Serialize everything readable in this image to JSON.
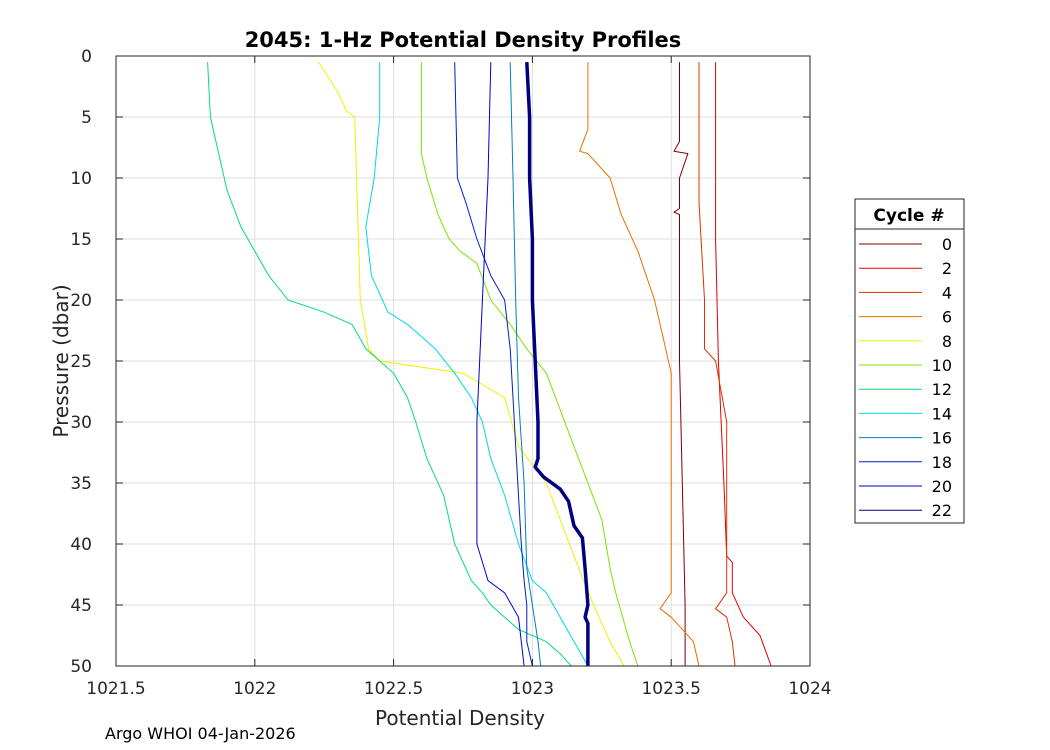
{
  "chart_data": {
    "type": "line",
    "title": "2045: 1-Hz Potential Density Profiles",
    "xlabel": "Potential Density",
    "ylabel": "Pressure (dbar)",
    "xlim": [
      1021.5,
      1024
    ],
    "ylim": [
      0,
      50
    ],
    "y_reversed": true,
    "grid": true,
    "x_ticks": [
      1021.5,
      1022,
      1022.5,
      1023,
      1023.5,
      1024
    ],
    "x_tick_labels": [
      "1021.5",
      "1022",
      "1022.5",
      "1023",
      "1023.5",
      "1024"
    ],
    "y_ticks": [
      0,
      5,
      10,
      15,
      20,
      25,
      30,
      35,
      40,
      45,
      50
    ],
    "y_tick_labels": [
      "0",
      "5",
      "10",
      "15",
      "20",
      "25",
      "30",
      "35",
      "40",
      "45",
      "50"
    ],
    "legend": {
      "title": "Cycle #",
      "position": "outside-right",
      "entries": [
        {
          "label": "0",
          "color": "#800000"
        },
        {
          "label": "2",
          "color": "#e00000"
        },
        {
          "label": "4",
          "color": "#e03000"
        },
        {
          "label": "6",
          "color": "#e87000"
        },
        {
          "label": "8",
          "color": "#f0f000"
        },
        {
          "label": "10",
          "color": "#80e000"
        },
        {
          "label": "12",
          "color": "#00e070"
        },
        {
          "label": "14",
          "color": "#00d8e8"
        },
        {
          "label": "16",
          "color": "#0080c0"
        },
        {
          "label": "18",
          "color": "#0020c0"
        },
        {
          "label": "20",
          "color": "#0000d0"
        },
        {
          "label": "22",
          "color": "#000080"
        }
      ]
    },
    "series": [
      {
        "name": "0",
        "color": "#800000",
        "points": [
          [
            1023.53,
            0.5
          ],
          [
            1023.53,
            7
          ],
          [
            1023.51,
            7.8
          ],
          [
            1023.56,
            8
          ],
          [
            1023.53,
            10
          ],
          [
            1023.53,
            12.5
          ],
          [
            1023.51,
            12.8
          ],
          [
            1023.53,
            13
          ],
          [
            1023.53,
            25
          ],
          [
            1023.54,
            35
          ],
          [
            1023.55,
            45
          ],
          [
            1023.55,
            50
          ]
        ]
      },
      {
        "name": "2",
        "color": "#e00000",
        "points": [
          [
            1023.66,
            0.5
          ],
          [
            1023.66,
            15
          ],
          [
            1023.67,
            25
          ],
          [
            1023.69,
            35
          ],
          [
            1023.7,
            41
          ],
          [
            1023.72,
            41.5
          ],
          [
            1023.72,
            44
          ],
          [
            1023.76,
            46
          ],
          [
            1023.82,
            47.5
          ],
          [
            1023.86,
            50
          ]
        ]
      },
      {
        "name": "4",
        "color": "#e03000",
        "points": [
          [
            1023.6,
            0.5
          ],
          [
            1023.6,
            12
          ],
          [
            1023.62,
            20
          ],
          [
            1023.62,
            24
          ],
          [
            1023.66,
            25
          ],
          [
            1023.7,
            30
          ],
          [
            1023.7,
            44
          ],
          [
            1023.66,
            45.3
          ],
          [
            1023.7,
            46
          ],
          [
            1023.72,
            48
          ],
          [
            1023.73,
            50
          ]
        ]
      },
      {
        "name": "6",
        "color": "#e87000",
        "points": [
          [
            1023.2,
            0.5
          ],
          [
            1023.2,
            6
          ],
          [
            1023.17,
            7.8
          ],
          [
            1023.2,
            8
          ],
          [
            1023.28,
            10
          ],
          [
            1023.32,
            13
          ],
          [
            1023.38,
            16
          ],
          [
            1023.44,
            20
          ],
          [
            1023.47,
            23
          ],
          [
            1023.5,
            26
          ],
          [
            1023.5,
            44
          ],
          [
            1023.46,
            45.3
          ],
          [
            1023.5,
            46
          ],
          [
            1023.58,
            48
          ],
          [
            1023.6,
            50
          ]
        ]
      },
      {
        "name": "8",
        "color": "#f0f000",
        "points": [
          [
            1022.23,
            0.5
          ],
          [
            1022.3,
            3
          ],
          [
            1022.33,
            4.5
          ],
          [
            1022.36,
            5
          ],
          [
            1022.38,
            20
          ],
          [
            1022.41,
            24
          ],
          [
            1022.45,
            25
          ],
          [
            1022.75,
            26
          ],
          [
            1022.9,
            28
          ],
          [
            1022.95,
            32
          ],
          [
            1023.05,
            35
          ],
          [
            1023.1,
            38
          ],
          [
            1023.15,
            41
          ],
          [
            1023.22,
            45
          ],
          [
            1023.28,
            48
          ],
          [
            1023.33,
            50
          ]
        ]
      },
      {
        "name": "10",
        "color": "#80e000",
        "points": [
          [
            1022.6,
            0.5
          ],
          [
            1022.6,
            8
          ],
          [
            1022.62,
            10
          ],
          [
            1022.66,
            13
          ],
          [
            1022.7,
            15
          ],
          [
            1022.74,
            16
          ],
          [
            1022.8,
            17
          ],
          [
            1022.85,
            20
          ],
          [
            1022.92,
            22
          ],
          [
            1022.98,
            24
          ],
          [
            1023.05,
            26
          ],
          [
            1023.1,
            29
          ],
          [
            1023.15,
            32
          ],
          [
            1023.2,
            35
          ],
          [
            1023.25,
            38
          ],
          [
            1023.28,
            42
          ],
          [
            1023.3,
            44
          ],
          [
            1023.35,
            48
          ],
          [
            1023.38,
            50
          ]
        ]
      },
      {
        "name": "12",
        "color": "#00e070",
        "points": [
          [
            1021.83,
            0.5
          ],
          [
            1021.84,
            5
          ],
          [
            1021.86,
            7
          ],
          [
            1021.88,
            9
          ],
          [
            1021.9,
            11
          ],
          [
            1021.95,
            14
          ],
          [
            1022.0,
            16
          ],
          [
            1022.05,
            18
          ],
          [
            1022.12,
            20
          ],
          [
            1022.25,
            21
          ],
          [
            1022.35,
            22
          ],
          [
            1022.4,
            24
          ],
          [
            1022.5,
            26
          ],
          [
            1022.55,
            28
          ],
          [
            1022.58,
            30
          ],
          [
            1022.62,
            33
          ],
          [
            1022.68,
            36
          ],
          [
            1022.72,
            40
          ],
          [
            1022.78,
            43
          ],
          [
            1022.82,
            44
          ],
          [
            1022.85,
            45
          ],
          [
            1022.9,
            46
          ],
          [
            1022.95,
            47
          ],
          [
            1023.05,
            48
          ],
          [
            1023.1,
            49
          ],
          [
            1023.14,
            50
          ]
        ]
      },
      {
        "name": "14",
        "color": "#00d8e8",
        "points": [
          [
            1022.45,
            0.5
          ],
          [
            1022.45,
            5
          ],
          [
            1022.43,
            10
          ],
          [
            1022.4,
            14
          ],
          [
            1022.42,
            18
          ],
          [
            1022.48,
            21
          ],
          [
            1022.55,
            22
          ],
          [
            1022.65,
            24
          ],
          [
            1022.72,
            26
          ],
          [
            1022.78,
            28
          ],
          [
            1022.82,
            30
          ],
          [
            1022.85,
            33
          ],
          [
            1022.9,
            36
          ],
          [
            1022.95,
            40
          ],
          [
            1023.0,
            43
          ],
          [
            1023.05,
            44
          ],
          [
            1023.1,
            46
          ],
          [
            1023.15,
            48
          ],
          [
            1023.2,
            50
          ]
        ]
      },
      {
        "name": "16",
        "color": "#0080c0",
        "points": [
          [
            1022.92,
            0.5
          ],
          [
            1022.93,
            10
          ],
          [
            1022.94,
            20
          ],
          [
            1022.95,
            28
          ],
          [
            1022.97,
            35
          ],
          [
            1022.98,
            42
          ],
          [
            1023.0,
            45
          ],
          [
            1023.02,
            48
          ],
          [
            1023.03,
            50
          ]
        ]
      },
      {
        "name": "18",
        "color": "#0020c0",
        "points": [
          [
            1022.72,
            0.5
          ],
          [
            1022.73,
            10
          ],
          [
            1022.76,
            12
          ],
          [
            1022.8,
            15
          ],
          [
            1022.85,
            18
          ],
          [
            1022.9,
            20
          ],
          [
            1022.92,
            24
          ],
          [
            1022.93,
            28
          ],
          [
            1022.94,
            32
          ],
          [
            1022.95,
            36
          ],
          [
            1022.96,
            40
          ],
          [
            1022.97,
            43
          ],
          [
            1022.98,
            45
          ],
          [
            1022.98,
            48
          ],
          [
            1023.0,
            50
          ]
        ]
      },
      {
        "name": "20",
        "color": "#0000d0",
        "points": [
          [
            1022.85,
            0.5
          ],
          [
            1022.84,
            10
          ],
          [
            1022.82,
            20
          ],
          [
            1022.8,
            30
          ],
          [
            1022.8,
            40
          ],
          [
            1022.84,
            43
          ],
          [
            1022.9,
            44
          ],
          [
            1022.95,
            46
          ],
          [
            1022.97,
            50
          ]
        ]
      },
      {
        "name": "22",
        "color": "#000080",
        "bold": true,
        "points": [
          [
            1022.98,
            0.5
          ],
          [
            1022.99,
            5
          ],
          [
            1022.99,
            10
          ],
          [
            1023.0,
            15
          ],
          [
            1023.0,
            20
          ],
          [
            1023.01,
            25
          ],
          [
            1023.02,
            30
          ],
          [
            1023.02,
            33
          ],
          [
            1023.01,
            33.7
          ],
          [
            1023.04,
            34.5
          ],
          [
            1023.1,
            35.5
          ],
          [
            1023.13,
            36.5
          ],
          [
            1023.15,
            38.5
          ],
          [
            1023.18,
            39.5
          ],
          [
            1023.19,
            42
          ],
          [
            1023.2,
            45
          ],
          [
            1023.19,
            46
          ],
          [
            1023.2,
            46.5
          ],
          [
            1023.2,
            50
          ]
        ]
      }
    ]
  },
  "footer": {
    "text": "Argo WHOI 04-Jan-2026"
  }
}
